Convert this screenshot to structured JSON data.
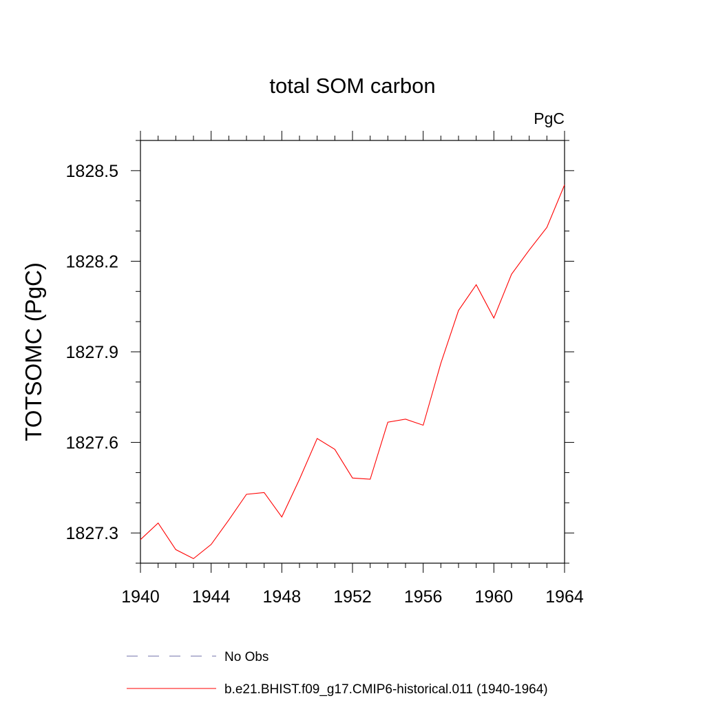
{
  "chart_data": {
    "type": "line",
    "title": "total SOM carbon",
    "units_label": "PgC",
    "ylabel": "TOTSOMC  (PgC)",
    "xlabel": "",
    "xlim": [
      1940,
      1964
    ],
    "ylim": [
      1827.2,
      1828.6
    ],
    "x_ticks": [
      1940,
      1944,
      1948,
      1952,
      1956,
      1960,
      1964
    ],
    "x_tick_labels": [
      "1940",
      "1944",
      "1948",
      "1952",
      "1956",
      "1960",
      "1964"
    ],
    "y_ticks": [
      1827.3,
      1827.6,
      1827.9,
      1828.2,
      1828.5
    ],
    "y_tick_labels": [
      "1827.3",
      "1827.6",
      "1827.9",
      "1828.2",
      "1828.5"
    ],
    "grid": false,
    "legend_position": "bottom",
    "series": [
      {
        "name": "No Obs",
        "color": "#6f6fa8",
        "style": "dashed",
        "x": [],
        "y": []
      },
      {
        "name": "b.e21.BHIST.f09_g17.CMIP6-historical.011 (1940-1964)",
        "color": "#ff0000",
        "style": "solid",
        "x": [
          1940,
          1941,
          1942,
          1943,
          1944,
          1945,
          1946,
          1947,
          1948,
          1949,
          1950,
          1951,
          1952,
          1953,
          1954,
          1955,
          1956,
          1957,
          1958,
          1959,
          1960,
          1961,
          1962,
          1963,
          1964
        ],
        "y": [
          1827.278,
          1827.333,
          1827.245,
          1827.215,
          1827.262,
          1827.343,
          1827.428,
          1827.434,
          1827.353,
          1827.478,
          1827.613,
          1827.577,
          1827.482,
          1827.478,
          1827.667,
          1827.677,
          1827.657,
          1827.862,
          1828.037,
          1828.122,
          1828.012,
          1828.157,
          1828.237,
          1828.312,
          1828.453
        ]
      }
    ]
  }
}
